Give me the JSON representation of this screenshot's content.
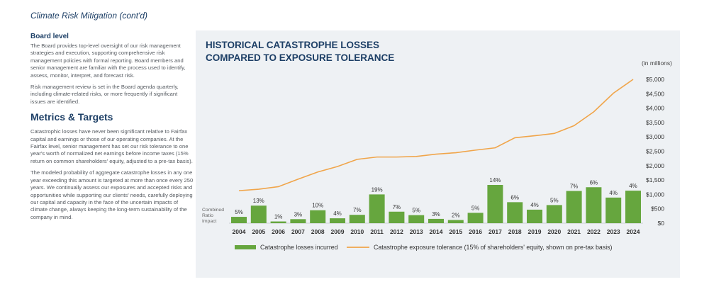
{
  "page": {
    "section_title": "Climate Risk Mitigation (cont'd)",
    "board_heading": "Board level",
    "board_text": "The Board provides top-level oversight of our risk management strategies and execution, supporting comprehensive risk management policies with formal reporting. Board members and senior management are familiar with the process used to identify, assess, monitor, interpret, and forecast risk.",
    "board_text2": "Risk management review is set in the Board agenda quarterly, including climate-related risks, or more frequently if significant issues are identified.",
    "metrics_heading": "Metrics & Targets",
    "metrics_text1": "Catastrophic losses have never been significant relative to Fairfax capital and earnings or those of our operating companies. At the Fairfax level, senior management has set our risk tolerance to one year's worth of normalized net earnings before income taxes (15% return on common shareholders' equity, adjusted to a pre-tax basis).",
    "metrics_text2": "The modeled probability of aggregate catastrophe losses in any one year exceeding this amount is targeted at more than once every 250 years. We continually assess our exposures and accepted risks and opportunities while supporting our clients' needs, carefully deploying our capital and capacity in the face of the uncertain impacts of climate change, always keeping the long-term sustainability of the company in mind."
  },
  "chart_data": {
    "type": "bar",
    "title_line1": "HISTORICAL CATASTROPHE LOSSES",
    "title_line2": "COMPARED TO EXPOSURE TOLERANCE",
    "unit_label": "(in millions)",
    "row_label": [
      "Combined",
      "Ratio",
      "Impact"
    ],
    "categories": [
      "2004",
      "2005",
      "2006",
      "2007",
      "2008",
      "2009",
      "2010",
      "2011",
      "2012",
      "2013",
      "2014",
      "2015",
      "2016",
      "2017",
      "2018",
      "2019",
      "2020",
      "2021",
      "2022",
      "2023",
      "2024"
    ],
    "ylim": [
      0,
      5000
    ],
    "y_ticks": [
      0,
      500,
      1000,
      1500,
      2000,
      2500,
      3000,
      3500,
      4000,
      4500,
      5000
    ],
    "y_tick_labels": [
      "$0",
      "$500",
      "$1,000",
      "$1,500",
      "$2,000",
      "$2,500",
      "$3,000",
      "$3,500",
      "$4,000",
      "$4,500",
      "$5,000"
    ],
    "series": [
      {
        "name": "Catastrophe losses incurred",
        "kind": "bar",
        "color": "#66a63e",
        "values": [
          220,
          610,
          60,
          140,
          450,
          170,
          290,
          1000,
          400,
          280,
          150,
          110,
          360,
          1330,
          730,
          470,
          630,
          1120,
          1250,
          890,
          1130
        ],
        "data_labels": [
          "5%",
          "13%",
          "1%",
          "3%",
          "10%",
          "4%",
          "7%",
          "19%",
          "7%",
          "5%",
          "3%",
          "2%",
          "5%",
          "14%",
          "6%",
          "4%",
          "5%",
          "7%",
          "6%",
          "4%",
          "4%"
        ]
      },
      {
        "name": "Catastrophe exposure tolerance (15% of shareholders' equity, shown on pre-tax basis)",
        "kind": "line",
        "color": "#f0a54a",
        "values": [
          1130,
          1180,
          1270,
          1530,
          1780,
          1970,
          2220,
          2300,
          2300,
          2320,
          2400,
          2450,
          2540,
          2620,
          2970,
          3040,
          3120,
          3390,
          3870,
          4520,
          5000
        ]
      }
    ],
    "grid": false,
    "legend_position": "bottom"
  }
}
